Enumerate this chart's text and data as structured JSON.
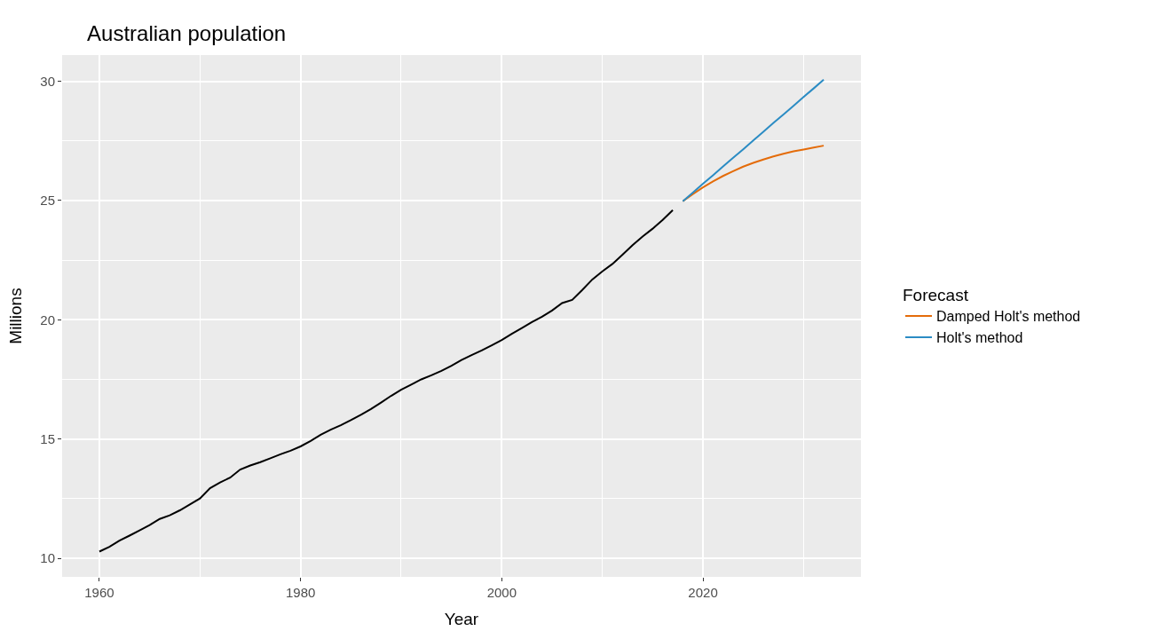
{
  "chart_data": {
    "type": "line",
    "title": "Australian population",
    "xlabel": "Year",
    "ylabel": "Millions",
    "legend_title": "Forecast",
    "series": [
      {
        "color": "#000000",
        "x": [
          1960,
          1961,
          1962,
          1963,
          1964,
          1965,
          1966,
          1967,
          1968,
          1969,
          1970,
          1971,
          1972,
          1973,
          1974,
          1975,
          1976,
          1977,
          1978,
          1979,
          1980,
          1981,
          1982,
          1983,
          1984,
          1985,
          1986,
          1987,
          1988,
          1989,
          1990,
          1991,
          1992,
          1993,
          1994,
          1995,
          1996,
          1997,
          1998,
          1999,
          2000,
          2001,
          2002,
          2003,
          2004,
          2005,
          2006,
          2007,
          2008,
          2009,
          2010,
          2011,
          2012,
          2013,
          2014,
          2015,
          2016,
          2017
        ],
        "values": [
          10.28,
          10.48,
          10.74,
          10.95,
          11.17,
          11.39,
          11.65,
          11.8,
          12.01,
          12.26,
          12.51,
          12.94,
          13.18,
          13.38,
          13.72,
          13.89,
          14.03,
          14.19,
          14.36,
          14.51,
          14.69,
          14.92,
          15.18,
          15.39,
          15.58,
          15.79,
          16.02,
          16.26,
          16.53,
          16.81,
          17.07,
          17.28,
          17.5,
          17.67,
          17.86,
          18.07,
          18.31,
          18.52,
          18.71,
          18.93,
          19.15,
          19.41,
          19.65,
          19.9,
          20.13,
          20.39,
          20.7,
          20.83,
          21.25,
          21.69,
          22.03,
          22.34,
          22.73,
          23.13,
          23.49,
          23.82,
          24.19,
          24.6
        ]
      },
      {
        "name": "Damped Holt's method",
        "color": "#e46c0a",
        "x": [
          2018,
          2019,
          2020,
          2021,
          2022,
          2023,
          2024,
          2025,
          2026,
          2027,
          2028,
          2029,
          2030,
          2031,
          2032
        ],
        "values": [
          24.97,
          25.27,
          25.55,
          25.8,
          26.03,
          26.23,
          26.42,
          26.58,
          26.72,
          26.85,
          26.96,
          27.06,
          27.14,
          27.22,
          27.3
        ]
      },
      {
        "name": "Holt's method",
        "color": "#2b8cc4",
        "x": [
          2018,
          2019,
          2020,
          2021,
          2022,
          2023,
          2024,
          2025,
          2026,
          2027,
          2028,
          2029,
          2030,
          2031,
          2032
        ],
        "values": [
          24.97,
          25.33,
          25.7,
          26.06,
          26.43,
          26.79,
          27.15,
          27.52,
          27.88,
          28.25,
          28.61,
          28.97,
          29.34,
          29.7,
          30.07
        ]
      }
    ],
    "xlim": [
      1956.3,
      2035.7
    ],
    "xticks": [
      1960,
      1980,
      2000,
      2020
    ],
    "ylim": [
      9.22,
      31.1
    ],
    "yticks": [
      10,
      15,
      20,
      25,
      30
    ],
    "grid": true,
    "legend": "right",
    "marker": "none",
    "line_style": "solid"
  }
}
